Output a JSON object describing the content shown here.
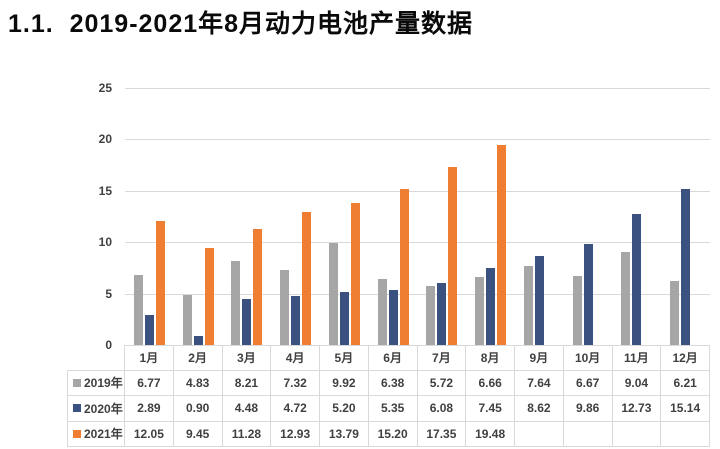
{
  "page": {
    "title": "1.1.  2019-2021年8月动力电池产量数据"
  },
  "colors": {
    "grid": "#d9d9d9",
    "axis_text": "#404040",
    "title_text": "#0a0a0a",
    "series_2019": "#a6a6a6",
    "series_2020": "#3b5180",
    "series_2021": "#ef7d32"
  },
  "chart_data": {
    "type": "bar",
    "title": "",
    "xlabel": "",
    "ylabel": "",
    "categories": [
      "1月",
      "2月",
      "3月",
      "4月",
      "5月",
      "6月",
      "7月",
      "8月",
      "9月",
      "10月",
      "11月",
      "12月"
    ],
    "series": [
      {
        "name": "2019年",
        "color": "#a6a6a6",
        "values": [
          6.77,
          4.83,
          8.21,
          7.32,
          9.92,
          6.38,
          5.72,
          6.66,
          7.64,
          6.67,
          9.04,
          6.21
        ]
      },
      {
        "name": "2020年",
        "color": "#3b5180",
        "values": [
          2.89,
          0.9,
          4.48,
          4.72,
          5.2,
          5.35,
          6.08,
          7.45,
          8.62,
          9.86,
          12.73,
          15.14
        ]
      },
      {
        "name": "2021年",
        "color": "#ef7d32",
        "values": [
          12.05,
          9.45,
          11.28,
          12.93,
          13.79,
          15.2,
          17.35,
          19.48
        ]
      }
    ],
    "ylim": [
      0,
      25
    ],
    "yticks": [
      "0",
      "5",
      "10",
      "15",
      "20",
      "25"
    ],
    "grid": true,
    "legend_position": "data-table-left",
    "value_decimals": 2
  }
}
